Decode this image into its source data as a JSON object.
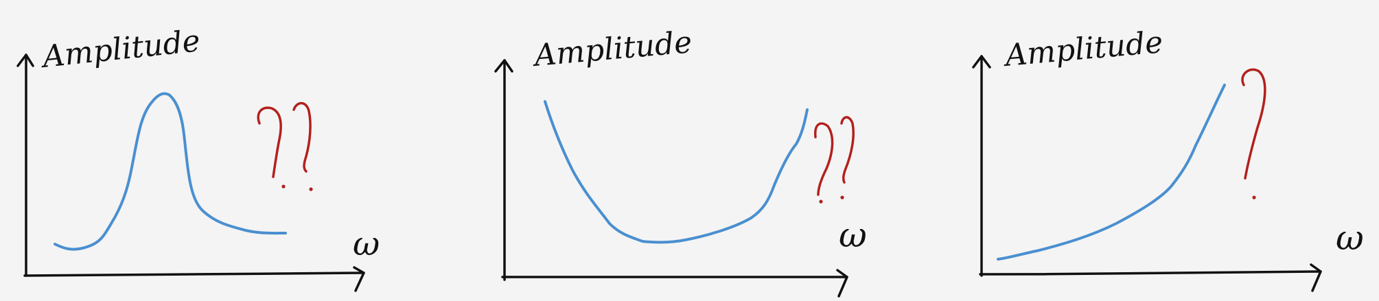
{
  "panels": [
    {
      "ylabel": "Amplitude",
      "xlabel": "ω",
      "annotation": "??",
      "curve_shape": "resonance-peak"
    },
    {
      "ylabel": "Amplitude",
      "xlabel": "ω",
      "annotation": "??",
      "curve_shape": "u-shaped"
    },
    {
      "ylabel": "Amplitude",
      "xlabel": "ω",
      "annotation": "?",
      "curve_shape": "rising"
    }
  ],
  "colors": {
    "axes": "#111111",
    "curve": "#4a8fd0",
    "annotation": "#b3201c",
    "background": "#f4f4f4"
  }
}
